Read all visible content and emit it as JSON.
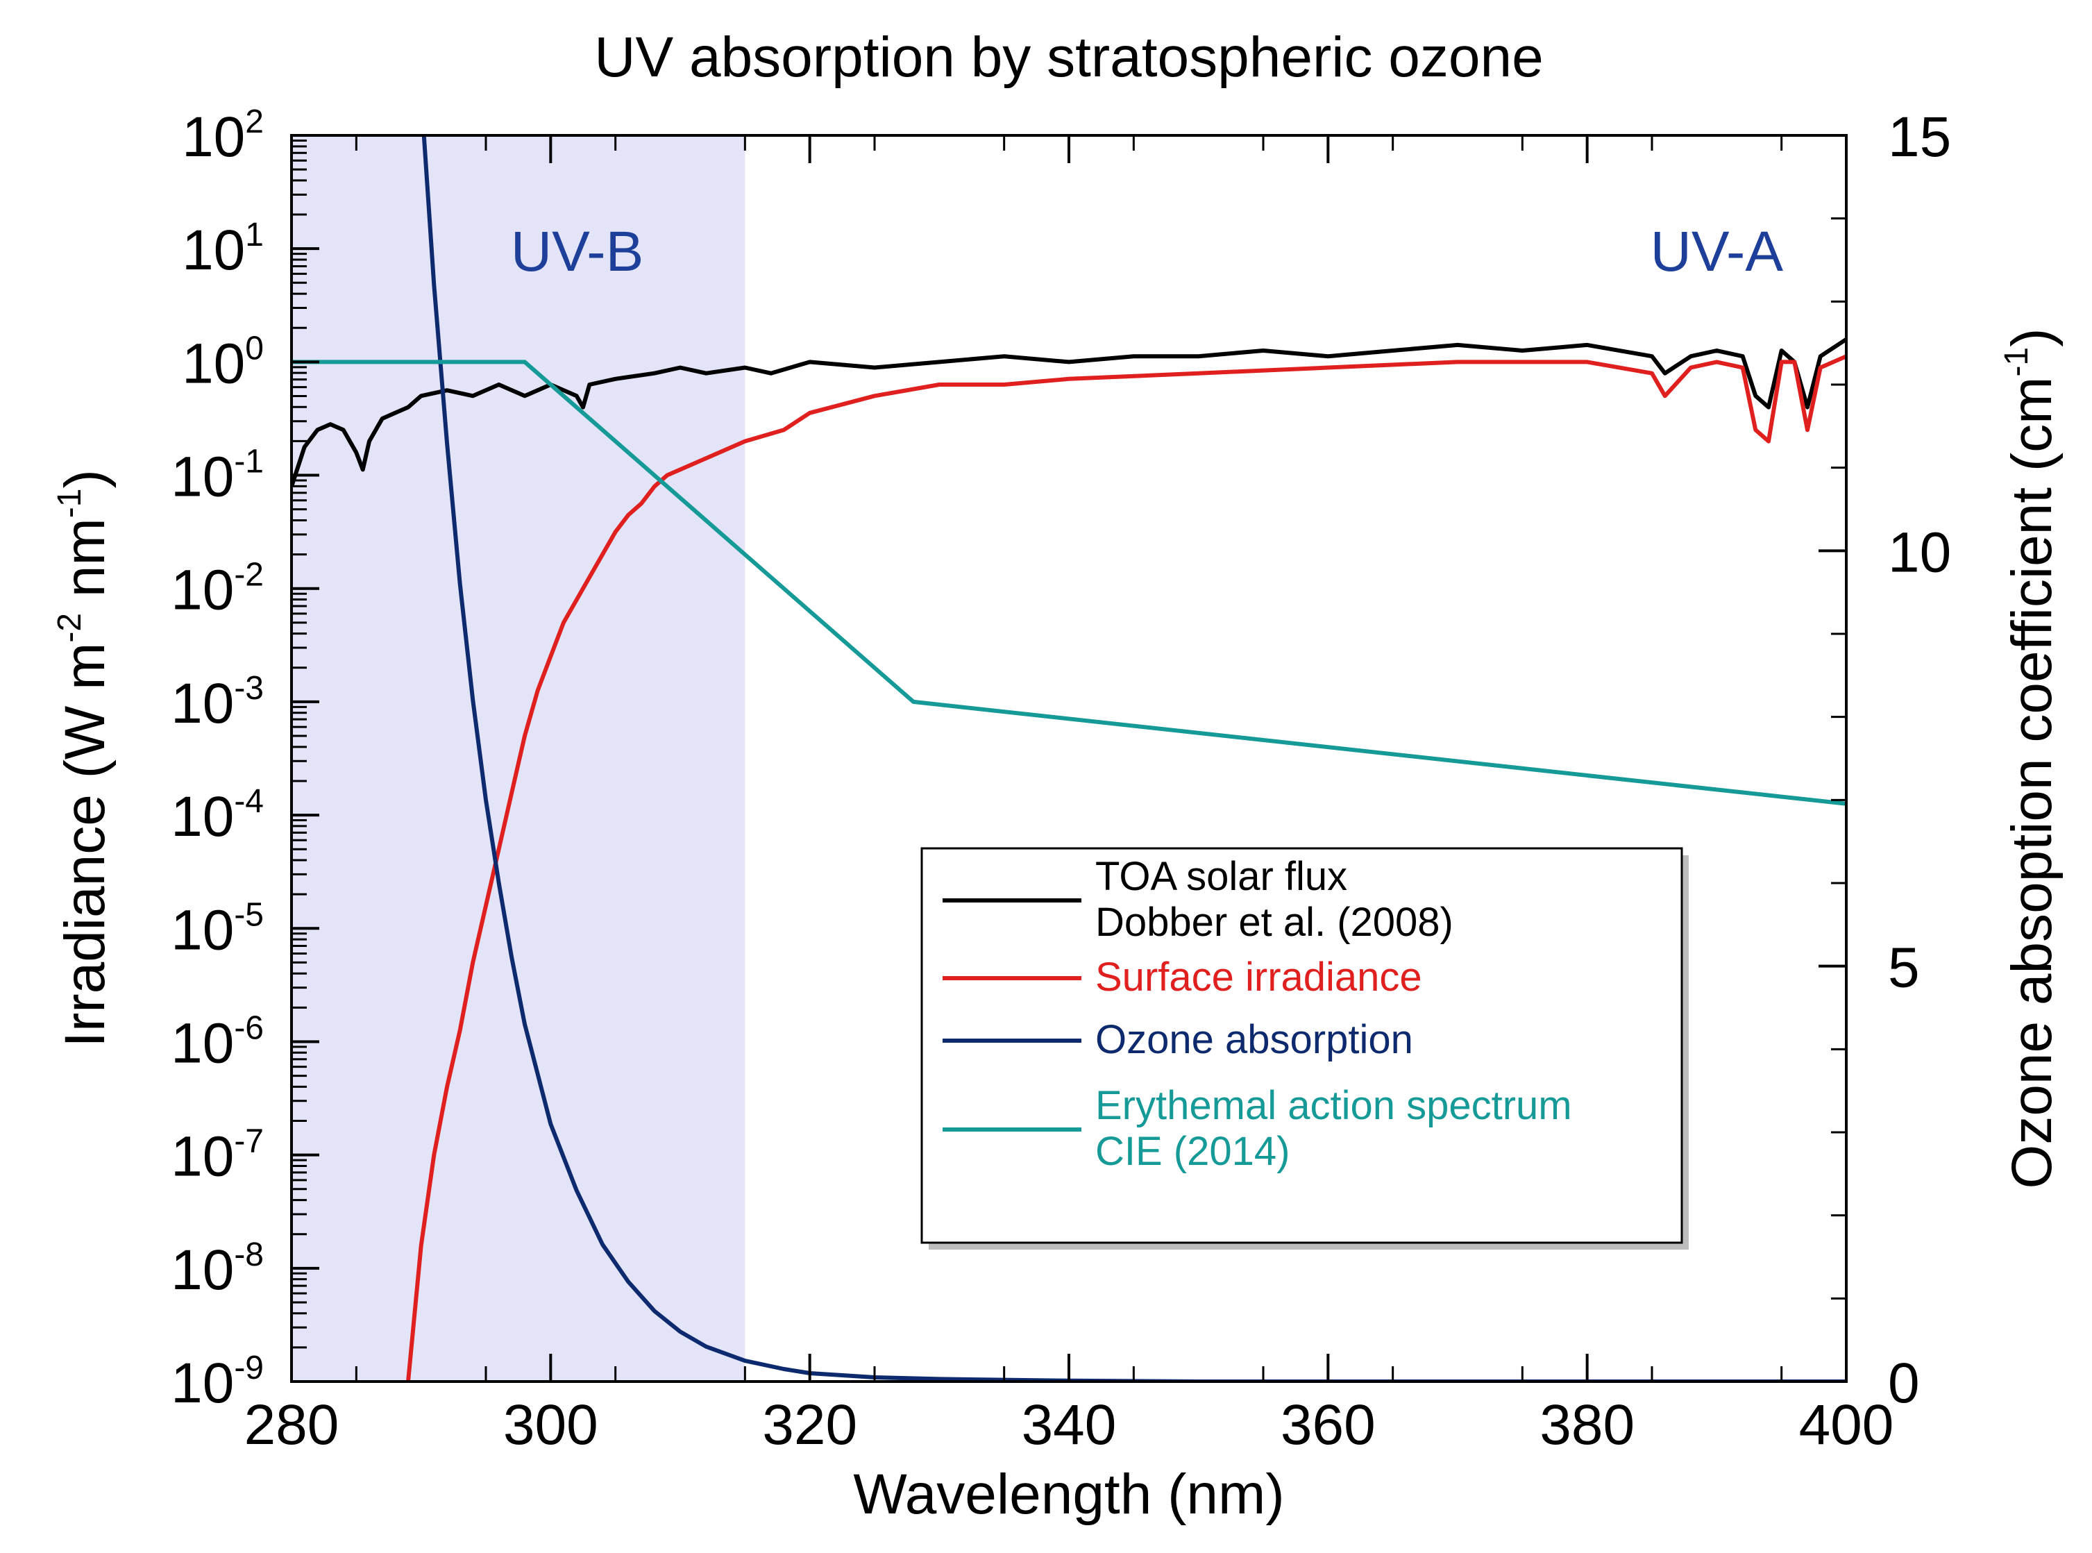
{
  "chart_data": {
    "type": "line",
    "title": "UV absorption by stratospheric ozone",
    "xlabel": "Wavelength (nm)",
    "ylabel_left": "Irradiance (W m",
    "ylabel_left_parts": [
      "Irradiance (W m",
      "-2",
      " nm",
      "-1",
      ")"
    ],
    "ylabel_right_parts": [
      "Ozone absoption coefficient (cm",
      "-1",
      ")"
    ],
    "xlim": [
      280,
      400
    ],
    "ylim_left_log10": [
      -9,
      2
    ],
    "ylim_right": [
      0,
      15
    ],
    "x_ticks": [
      280,
      300,
      320,
      340,
      360,
      380,
      400
    ],
    "y_left_ticks": [
      {
        "base": "10",
        "exp": "2",
        "value": 2
      },
      {
        "base": "10",
        "exp": "1",
        "value": 1
      },
      {
        "base": "10",
        "exp": "0",
        "value": 0
      },
      {
        "base": "10",
        "exp": "-1",
        "value": -1
      },
      {
        "base": "10",
        "exp": "-2",
        "value": -2
      },
      {
        "base": "10",
        "exp": "-3",
        "value": -3
      },
      {
        "base": "10",
        "exp": "-4",
        "value": -4
      },
      {
        "base": "10",
        "exp": "-5",
        "value": -5
      },
      {
        "base": "10",
        "exp": "-6",
        "value": -6
      },
      {
        "base": "10",
        "exp": "-7",
        "value": -7
      },
      {
        "base": "10",
        "exp": "-8",
        "value": -8
      },
      {
        "base": "10",
        "exp": "-9",
        "value": -9
      }
    ],
    "y_right_ticks": [
      0,
      5,
      10,
      15
    ],
    "regions": [
      {
        "name": "UV-B",
        "x_start": 280,
        "x_end": 315,
        "color": "#e3e4f7"
      },
      {
        "name": "UV-A",
        "x_start": 315,
        "x_end": 400,
        "color": "#ffffff"
      }
    ],
    "legend": {
      "placement": "lower-right",
      "entries": [
        {
          "lines": [
            "TOA solar flux",
            "Dobber et al. (2008)"
          ],
          "color": "#000000",
          "text_color": "#000000"
        },
        {
          "lines": [
            "Surface irradiance"
          ],
          "color": "#e0201f",
          "text_color": "#e0201f"
        },
        {
          "lines": [
            "Ozone absorption"
          ],
          "color": "#0e2a6e",
          "text_color": "#0e2a6e"
        },
        {
          "lines": [
            "Erythemal action spectrum",
            "CIE (2014)"
          ],
          "color": "#159a98",
          "text_color": "#159a98"
        }
      ]
    },
    "series": [
      {
        "name": "TOA solar flux",
        "axis": "left_log",
        "color": "#000000",
        "x": [
          280,
          281,
          282,
          283,
          284,
          285,
          285.5,
          286,
          287,
          288,
          289,
          290,
          292,
          294,
          296,
          298,
          300,
          302,
          302.5,
          303,
          305,
          308,
          310,
          312,
          315,
          317,
          320,
          325,
          330,
          335,
          340,
          345,
          350,
          355,
          360,
          365,
          370,
          375,
          380,
          385,
          386,
          388,
          390,
          392,
          393,
          394,
          395,
          396,
          397,
          398,
          400
        ],
        "y": [
          -1.1,
          -0.75,
          -0.6,
          -0.55,
          -0.6,
          -0.8,
          -0.95,
          -0.7,
          -0.5,
          -0.45,
          -0.4,
          -0.3,
          -0.25,
          -0.3,
          -0.2,
          -0.3,
          -0.2,
          -0.3,
          -0.4,
          -0.2,
          -0.15,
          -0.1,
          -0.05,
          -0.1,
          -0.05,
          -0.1,
          0.0,
          -0.05,
          0.0,
          0.05,
          0.0,
          0.05,
          0.05,
          0.1,
          0.05,
          0.1,
          0.15,
          0.1,
          0.15,
          0.05,
          -0.1,
          0.05,
          0.1,
          0.05,
          -0.3,
          -0.4,
          0.1,
          0.0,
          -0.4,
          0.05,
          0.2
        ]
      },
      {
        "name": "Surface irradiance",
        "axis": "left_log",
        "color": "#e0201f",
        "x": [
          289,
          290,
          291,
          292,
          293,
          294,
          295,
          296,
          297,
          298,
          299,
          300,
          301,
          302,
          303,
          304,
          305,
          306,
          307,
          308,
          309,
          310,
          312,
          315,
          318,
          320,
          325,
          330,
          335,
          340,
          350,
          360,
          370,
          380,
          385,
          386,
          388,
          390,
          392,
          393,
          394,
          395,
          396,
          397,
          398,
          400
        ],
        "y": [
          -9.0,
          -7.8,
          -7.0,
          -6.4,
          -5.9,
          -5.3,
          -4.8,
          -4.3,
          -3.8,
          -3.3,
          -2.9,
          -2.6,
          -2.3,
          -2.1,
          -1.9,
          -1.7,
          -1.5,
          -1.35,
          -1.25,
          -1.1,
          -1.0,
          -0.95,
          -0.85,
          -0.7,
          -0.6,
          -0.45,
          -0.3,
          -0.2,
          -0.2,
          -0.15,
          -0.1,
          -0.05,
          0.0,
          0.0,
          -0.1,
          -0.3,
          -0.05,
          0.0,
          -0.05,
          -0.6,
          -0.7,
          0.0,
          0.0,
          -0.6,
          -0.05,
          0.05
        ]
      },
      {
        "name": "Ozone absorption",
        "axis": "right_linear",
        "color": "#0e2a6e",
        "x": [
          290,
          291,
          292,
          293,
          294,
          295,
          296,
          297,
          298,
          299,
          300,
          302,
          304,
          306,
          308,
          310,
          312,
          315,
          318,
          320,
          325,
          330,
          340,
          350,
          360,
          400
        ],
        "y": [
          15.5,
          13.2,
          11.3,
          9.6,
          8.2,
          7.0,
          6.0,
          5.1,
          4.3,
          3.7,
          3.1,
          2.3,
          1.65,
          1.2,
          0.85,
          0.6,
          0.42,
          0.25,
          0.15,
          0.1,
          0.05,
          0.03,
          0.01,
          0.0,
          0.0,
          0.0
        ]
      },
      {
        "name": "Erythemal action spectrum",
        "axis": "left_log",
        "color": "#159a98",
        "x": [
          280,
          298,
          328,
          400
        ],
        "y": [
          0.0,
          0.0,
          -3.0,
          -3.9
        ]
      }
    ]
  }
}
